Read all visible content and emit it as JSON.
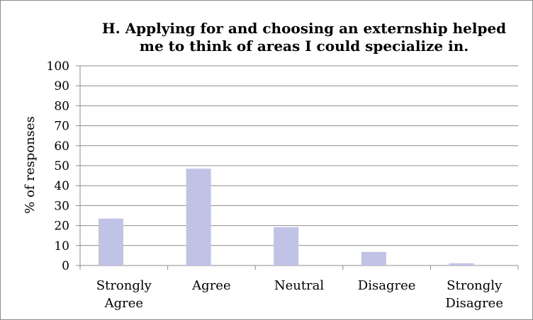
{
  "chart_data": {
    "type": "bar",
    "title_lines": [
      "H. Applying for and choosing an externship helped",
      "me to think of areas I could specialize in."
    ],
    "ylabel": "% of responses",
    "xlabel": "",
    "categories": [
      [
        "Strongly",
        "Agree"
      ],
      [
        "Agree"
      ],
      [
        "Neutral"
      ],
      [
        "Disagree"
      ],
      [
        "Strongly",
        "Disagree"
      ]
    ],
    "values": [
      23.5,
      48.5,
      19.2,
      6.8,
      1.1
    ],
    "ylim": [
      0,
      100
    ],
    "yticks": [
      "0",
      "10",
      "20",
      "30",
      "40",
      "50",
      "60",
      "70",
      "80",
      "90",
      "100"
    ],
    "grid": true,
    "legend": "none",
    "bar_color": "#c0c3e6",
    "grid_color": "#8c8c8c"
  }
}
